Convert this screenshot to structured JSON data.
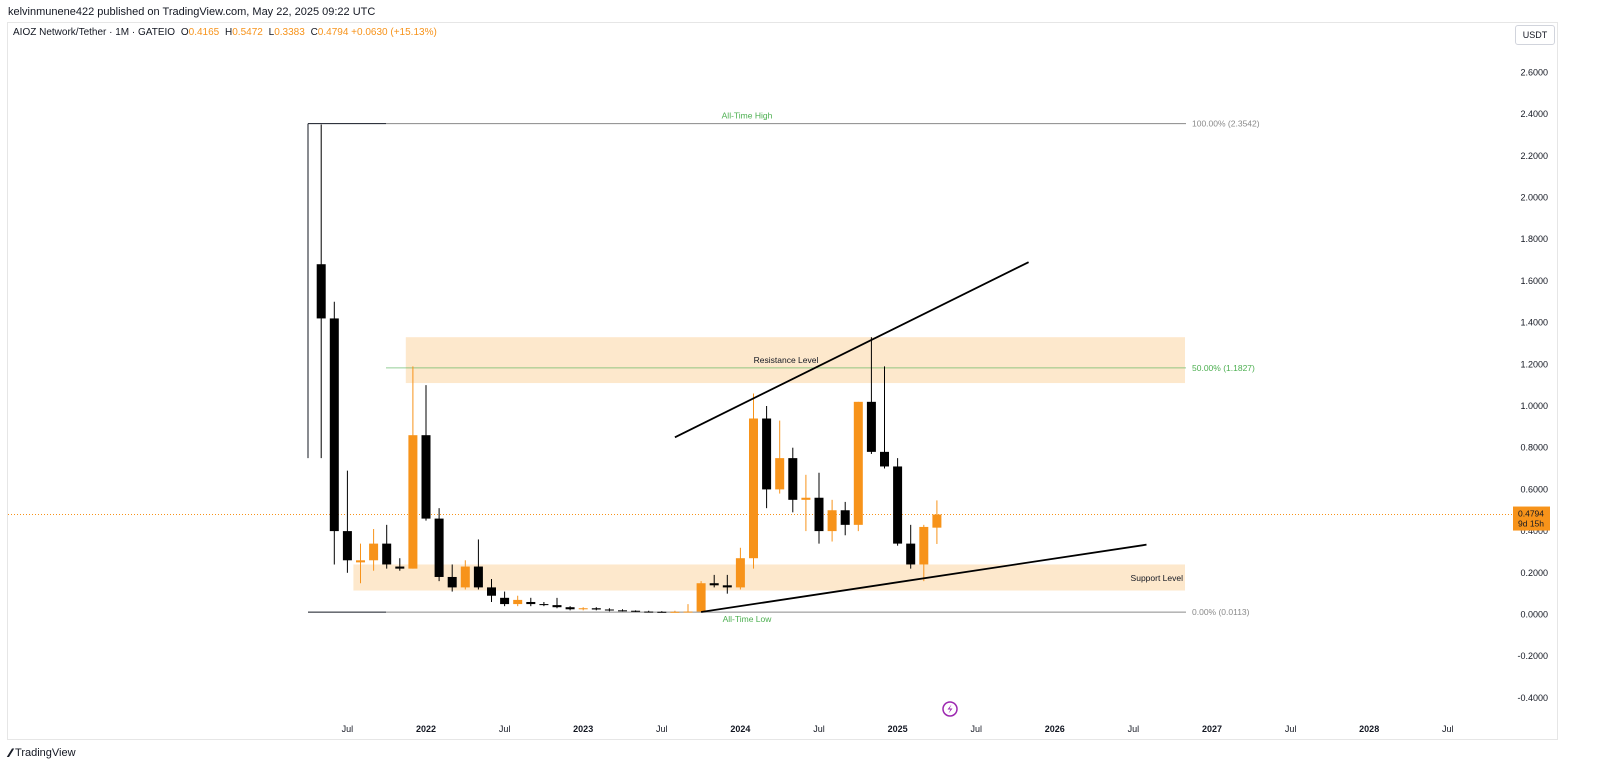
{
  "publisher": "kelvinmunene422 published on TradingView.com, May 22, 2025 09:22 UTC",
  "legend": {
    "symbol": "AIOZ Network/Tether · 1M · GATEIO",
    "o_label": "O",
    "o": "0.4165",
    "h_label": "H",
    "h": "0.5472",
    "l_label": "L",
    "l": "0.3383",
    "c_label": "C",
    "c": "0.4794",
    "change": "+0.0630 (+15.13%)"
  },
  "unit": "USDT",
  "footer": {
    "brand": "TradingView"
  },
  "colors": {
    "up": "#f7931a",
    "down": "#000000",
    "zone": "#fde8cc",
    "green": "#4caf50",
    "fib": "#8a8a8a"
  },
  "chart_data": {
    "type": "candlestick",
    "interval": "1M",
    "ylim": [
      -0.45,
      2.7
    ],
    "y_ticks": [
      "2.6000",
      "2.4000",
      "2.2000",
      "2.0000",
      "1.8000",
      "1.6000",
      "1.4000",
      "1.2000",
      "1.0000",
      "0.8000",
      "0.6000",
      "0.4000",
      "0.2000",
      "0.0000",
      "-0.2000",
      "-0.4000"
    ],
    "x_ticks": [
      "Jul",
      "2022",
      "Jul",
      "2023",
      "Jul",
      "2024",
      "Jul",
      "2025",
      "Jul",
      "2026",
      "Jul",
      "2027",
      "Jul",
      "2028",
      "Jul"
    ],
    "x_range": [
      "2021-03",
      "2029-03"
    ],
    "candles": [
      {
        "t": "2021-05",
        "o": 1.68,
        "h": 2.35,
        "l": 0.75,
        "c": 1.42
      },
      {
        "t": "2021-06",
        "o": 1.42,
        "h": 1.5,
        "l": 0.24,
        "c": 0.4
      },
      {
        "t": "2021-07",
        "o": 0.4,
        "h": 0.69,
        "l": 0.2,
        "c": 0.26
      },
      {
        "t": "2021-08",
        "o": 0.25,
        "h": 0.34,
        "l": 0.15,
        "c": 0.26
      },
      {
        "t": "2021-09",
        "o": 0.26,
        "h": 0.41,
        "l": 0.21,
        "c": 0.34
      },
      {
        "t": "2021-10",
        "o": 0.34,
        "h": 0.43,
        "l": 0.22,
        "c": 0.24
      },
      {
        "t": "2021-11",
        "o": 0.23,
        "h": 0.27,
        "l": 0.21,
        "c": 0.22
      },
      {
        "t": "2021-12",
        "o": 0.22,
        "h": 1.19,
        "l": 0.22,
        "c": 0.86
      },
      {
        "t": "2022-01",
        "o": 0.86,
        "h": 1.1,
        "l": 0.45,
        "c": 0.46
      },
      {
        "t": "2022-02",
        "o": 0.46,
        "h": 0.51,
        "l": 0.16,
        "c": 0.18
      },
      {
        "t": "2022-03",
        "o": 0.18,
        "h": 0.24,
        "l": 0.11,
        "c": 0.13
      },
      {
        "t": "2022-04",
        "o": 0.13,
        "h": 0.26,
        "l": 0.12,
        "c": 0.23
      },
      {
        "t": "2022-05",
        "o": 0.23,
        "h": 0.36,
        "l": 0.12,
        "c": 0.13
      },
      {
        "t": "2022-06",
        "o": 0.13,
        "h": 0.17,
        "l": 0.06,
        "c": 0.09
      },
      {
        "t": "2022-07",
        "o": 0.08,
        "h": 0.11,
        "l": 0.04,
        "c": 0.05
      },
      {
        "t": "2022-08",
        "o": 0.05,
        "h": 0.09,
        "l": 0.04,
        "c": 0.07
      },
      {
        "t": "2022-09",
        "o": 0.06,
        "h": 0.08,
        "l": 0.04,
        "c": 0.05
      },
      {
        "t": "2022-10",
        "o": 0.05,
        "h": 0.06,
        "l": 0.04,
        "c": 0.045
      },
      {
        "t": "2022-11",
        "o": 0.045,
        "h": 0.08,
        "l": 0.03,
        "c": 0.035
      },
      {
        "t": "2022-12",
        "o": 0.035,
        "h": 0.04,
        "l": 0.02,
        "c": 0.025
      },
      {
        "t": "2023-01",
        "o": 0.025,
        "h": 0.035,
        "l": 0.02,
        "c": 0.03
      },
      {
        "t": "2023-02",
        "o": 0.03,
        "h": 0.035,
        "l": 0.02,
        "c": 0.024
      },
      {
        "t": "2023-03",
        "o": 0.024,
        "h": 0.03,
        "l": 0.015,
        "c": 0.02
      },
      {
        "t": "2023-04",
        "o": 0.02,
        "h": 0.025,
        "l": 0.015,
        "c": 0.018
      },
      {
        "t": "2023-05",
        "o": 0.018,
        "h": 0.02,
        "l": 0.012,
        "c": 0.014
      },
      {
        "t": "2023-06",
        "o": 0.014,
        "h": 0.018,
        "l": 0.011,
        "c": 0.013
      },
      {
        "t": "2023-07",
        "o": 0.013,
        "h": 0.016,
        "l": 0.011,
        "c": 0.012
      },
      {
        "t": "2023-08",
        "o": 0.012,
        "h": 0.018,
        "l": 0.011,
        "c": 0.013
      },
      {
        "t": "2023-09",
        "o": 0.013,
        "h": 0.05,
        "l": 0.011,
        "c": 0.014
      },
      {
        "t": "2023-10",
        "o": 0.014,
        "h": 0.16,
        "l": 0.0113,
        "c": 0.15
      },
      {
        "t": "2023-11",
        "o": 0.15,
        "h": 0.19,
        "l": 0.13,
        "c": 0.14
      },
      {
        "t": "2023-12",
        "o": 0.14,
        "h": 0.19,
        "l": 0.1,
        "c": 0.13
      },
      {
        "t": "2024-01",
        "o": 0.13,
        "h": 0.32,
        "l": 0.12,
        "c": 0.27
      },
      {
        "t": "2024-02",
        "o": 0.27,
        "h": 1.06,
        "l": 0.22,
        "c": 0.94
      },
      {
        "t": "2024-03",
        "o": 0.94,
        "h": 1.0,
        "l": 0.51,
        "c": 0.6
      },
      {
        "t": "2024-04",
        "o": 0.6,
        "h": 0.93,
        "l": 0.58,
        "c": 0.75
      },
      {
        "t": "2024-05",
        "o": 0.75,
        "h": 0.8,
        "l": 0.49,
        "c": 0.55
      },
      {
        "t": "2024-06",
        "o": 0.55,
        "h": 0.67,
        "l": 0.4,
        "c": 0.56
      },
      {
        "t": "2024-07",
        "o": 0.56,
        "h": 0.68,
        "l": 0.34,
        "c": 0.4
      },
      {
        "t": "2024-08",
        "o": 0.4,
        "h": 0.55,
        "l": 0.35,
        "c": 0.5
      },
      {
        "t": "2024-09",
        "o": 0.5,
        "h": 0.54,
        "l": 0.38,
        "c": 0.43
      },
      {
        "t": "2024-10",
        "o": 0.43,
        "h": 1.02,
        "l": 0.4,
        "c": 1.02
      },
      {
        "t": "2024-11",
        "o": 1.02,
        "h": 1.33,
        "l": 0.77,
        "c": 0.78
      },
      {
        "t": "2024-12",
        "o": 0.78,
        "h": 1.19,
        "l": 0.7,
        "c": 0.71
      },
      {
        "t": "2025-01",
        "o": 0.71,
        "h": 0.75,
        "l": 0.33,
        "c": 0.34
      },
      {
        "t": "2025-02",
        "o": 0.34,
        "h": 0.43,
        "l": 0.22,
        "c": 0.24
      },
      {
        "t": "2025-03",
        "o": 0.24,
        "h": 0.43,
        "l": 0.16,
        "c": 0.42
      },
      {
        "t": "2025-04",
        "o": 0.4165,
        "h": 0.5472,
        "l": 0.3383,
        "c": 0.4794
      }
    ],
    "last_price": "0.4794",
    "countdown": "9d 15h",
    "fib": {
      "high": {
        "label": "100.00% (2.3542)",
        "value": 2.3542
      },
      "mid": {
        "label": "50.00% (1.1827)",
        "value": 1.1827
      },
      "low": {
        "label": "0.00% (0.0113)",
        "value": 0.0113
      }
    },
    "zones": [
      {
        "label": "Resistance Level",
        "top": 1.33,
        "bottom": 1.11,
        "from": "2021-11",
        "to": "2026-06"
      },
      {
        "label": "Support Level",
        "top": 0.24,
        "bottom": 0.115,
        "from": "2021-07",
        "to": "2026-06"
      }
    ],
    "annotations": {
      "ath": "All-Time High",
      "atl": "All-Time Low"
    },
    "trendlines": [
      {
        "from": {
          "t": "2023-08",
          "v": 0.85
        },
        "to": {
          "t": "2025-11",
          "v": 1.69
        }
      },
      {
        "from": {
          "t": "2023-10",
          "v": 0.012
        },
        "to": {
          "t": "2026-08",
          "v": 0.335
        }
      }
    ]
  }
}
